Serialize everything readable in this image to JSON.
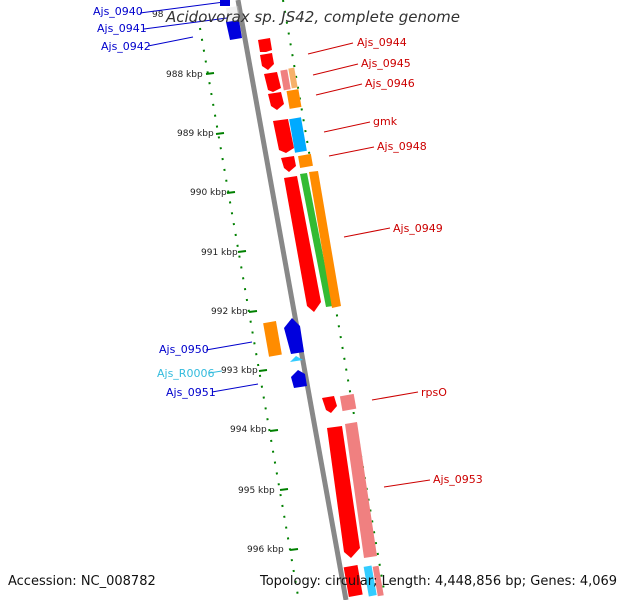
{
  "title": "Acidovorax sp. JS42, complete genome",
  "footer": {
    "accession_label": "Accession: NC_008782",
    "topology_label": "Topology: circular; Length: 4,448,856 bp; Genes: 4,069"
  },
  "colors": {
    "forward_strand": "#ff0000",
    "reverse_strand": "#0000dd",
    "rna": "#33ccff",
    "label_red": "#cc0000",
    "label_blue": "#0000cc",
    "label_cyan": "#33bbdd",
    "tick": "#008000",
    "backbone": "#888888"
  },
  "scale": {
    "ticks": [
      "988 kbp",
      "989 kbp",
      "990 kbp",
      "991 kbp",
      "992 kbp",
      "993 kbp",
      "994 kbp",
      "995 kbp",
      "996 kbp"
    ],
    "partial_tick": "98"
  },
  "genes": {
    "forward": [
      "Ajs_0944",
      "Ajs_0945",
      "Ajs_0946",
      "gmk",
      "Ajs_0948",
      "Ajs_0949",
      "rpsO",
      "Ajs_0953"
    ],
    "reverse": [
      "Ajs_0940",
      "Ajs_0941",
      "Ajs_0942",
      "Ajs_0950",
      "Ajs_R0006",
      "Ajs_0951"
    ]
  }
}
